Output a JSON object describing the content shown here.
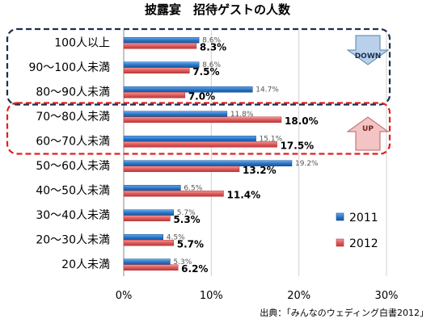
{
  "chart_data": {
    "type": "bar",
    "orientation": "horizontal",
    "title": "披露宴　招待ゲストの人数",
    "categories": [
      "100人以上",
      "90〜100人未満",
      "80〜90人未満",
      "70〜80人未満",
      "60〜70人未満",
      "50〜60人未満",
      "40〜50人未満",
      "30〜40人未満",
      "20〜30人未満",
      "20人未満"
    ],
    "series": [
      {
        "name": "2011",
        "color": "#2a78c8",
        "values": [
          8.6,
          8.6,
          14.7,
          11.8,
          15.1,
          19.2,
          6.5,
          5.7,
          4.5,
          5.3
        ],
        "labels": [
          "8.6%",
          "8.6%",
          "14.7%",
          "11.8%",
          "15.1%",
          "19.2%",
          "6.5%",
          "5.7%",
          "4.5%",
          "5.3%"
        ]
      },
      {
        "name": "2012",
        "color": "#e05a5a",
        "values": [
          8.3,
          7.5,
          7.0,
          18.0,
          17.5,
          13.2,
          11.4,
          5.3,
          5.7,
          6.2
        ],
        "labels": [
          "8.3%",
          "7.5%",
          "7.0%",
          "18.0%",
          "17.5%",
          "13.2%",
          "11.4%",
          "5.3%",
          "5.7%",
          "6.2%"
        ]
      }
    ],
    "xlim": [
      0,
      30
    ],
    "xticks": [
      "0%",
      "10%",
      "20%",
      "30%"
    ],
    "grid": true,
    "legend_placement": "bottom-right",
    "annotations": [
      {
        "label": "DOWN",
        "shape": "down-arrow",
        "color": "#b8d0ea",
        "group_color": "#1b2f4e",
        "categories": [
          "100人以上",
          "90〜100人未満",
          "80〜90人未満"
        ]
      },
      {
        "label": "UP",
        "shape": "up-arrow",
        "color": "#f2c4c4",
        "group_color": "#e02020",
        "categories": [
          "70〜80人未満",
          "60〜70人未満"
        ]
      }
    ],
    "source": "出典：「みんなのウェディング白書2012」"
  }
}
